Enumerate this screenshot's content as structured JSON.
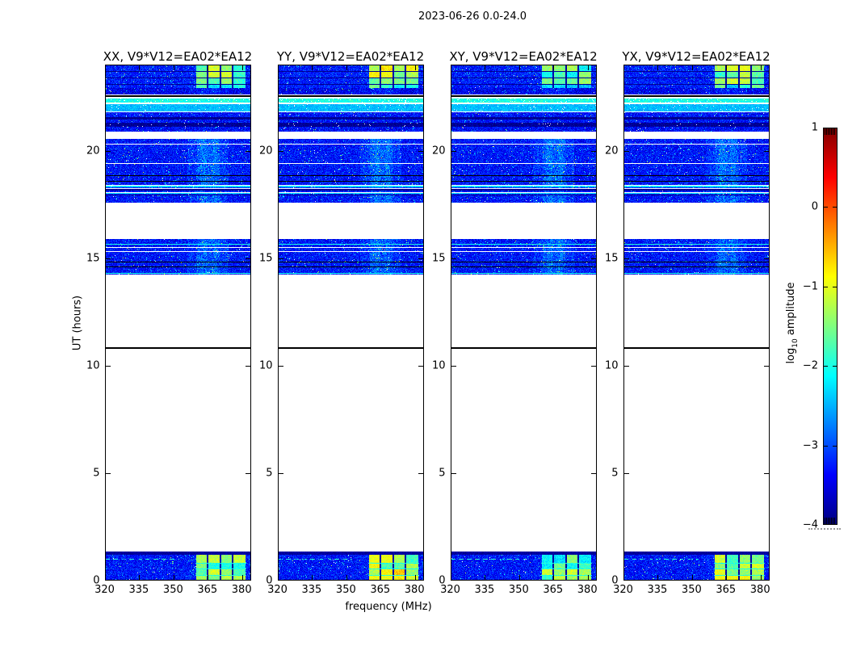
{
  "chart_data": {
    "type": "heatmap",
    "title": "2023-06-26 0.0-24.0",
    "xlabel": "frequency (MHz)",
    "ylabel": "UT (hours)",
    "x_range_mhz": [
      320,
      384
    ],
    "x_ticks": [
      320,
      335,
      350,
      365,
      380
    ],
    "y_range_hours": [
      0,
      24
    ],
    "y_ticks": [
      0,
      5,
      10,
      15,
      20
    ],
    "grid": false,
    "panels": [
      {
        "pol": "XX",
        "label": "XX, V9*V12=EA02*EA12",
        "seed": 101,
        "block_boost": 0.0
      },
      {
        "pol": "YY",
        "label": "YY, V9*V12=EA02*EA12",
        "seed": 202,
        "block_boost": 0.3
      },
      {
        "pol": "XY",
        "label": "XY, V9*V12=EA02*EA12",
        "seed": 303,
        "block_boost": -0.2
      },
      {
        "pol": "YX",
        "label": "YX, V9*V12=EA02*EA12",
        "seed": 404,
        "block_boost": 0.1
      }
    ],
    "colorbar": {
      "colormap": "jet",
      "range": [
        -4,
        1
      ],
      "ticks": [
        1,
        0,
        -1,
        -2,
        -3,
        -4
      ],
      "tick_labels": [
        "1",
        "0",
        "−1",
        "−2",
        "−3",
        "−4"
      ],
      "label_parts": {
        "base": "log",
        "sub": "10",
        "rest": " amplitude"
      }
    },
    "rfi_block_freq_mhz": [
      359.5,
      381.5
    ],
    "rfi_block_col_edges_mhz": [
      359.5,
      365,
      370.5,
      376,
      381.5
    ],
    "bright_band_freq_mhz": [
      356,
      374
    ],
    "noise_floor_log10": -3.3,
    "bands": [
      {
        "type": "blocks",
        "ut": [
          22.9,
          24.0
        ],
        "base": -3.25,
        "rows": [
          23.7,
          23.4,
          23.1
        ],
        "cell_v": [
          -2.0,
          -1.05
        ],
        "rowstyle": "dark",
        "dimlast": true,
        "vband": 0.2
      },
      {
        "type": "noise",
        "ut": [
          22.62,
          22.9
        ],
        "base": -3.45,
        "vband": 0.25
      },
      {
        "type": "hline",
        "ut": 22.59,
        "color": "black",
        "pxh": 2
      },
      {
        "type": "flat",
        "ut": [
          22.22,
          22.42
        ],
        "base": -2.0,
        "jit": 0.3,
        "speck": 0.05
      },
      {
        "type": "hline",
        "ut": 22.2,
        "color": "white",
        "pxh": 2
      },
      {
        "type": "flat",
        "ut": [
          21.84,
          22.17
        ],
        "base": -2.45,
        "jit": 0.2,
        "speck": 0.02
      },
      {
        "type": "hline",
        "ut": 21.8,
        "color": "white",
        "pxh": 2
      },
      {
        "type": "noise",
        "ut": [
          21.56,
          21.78
        ],
        "base": -3.3
      },
      {
        "type": "flat",
        "ut": [
          21.46,
          21.56
        ],
        "base": -3.9,
        "jit": 0.15
      },
      {
        "type": "noise",
        "ut": [
          21.3,
          21.46
        ],
        "base": -3.3
      },
      {
        "type": "flat",
        "ut": [
          21.1,
          21.3
        ],
        "base": -3.9,
        "jit": 0.2,
        "speck": 0.015
      },
      {
        "type": "noise",
        "ut": [
          20.9,
          21.1
        ],
        "base": -3.35
      },
      {
        "type": "noise",
        "ut": [
          17.56,
          20.56
        ],
        "base": -3.3,
        "vband": 0.55,
        "hlines": [
          {
            "ut": 20.33,
            "color": "white"
          },
          {
            "ut": 19.4,
            "color": "white"
          },
          {
            "ut": 18.85,
            "color": "black"
          },
          {
            "ut": 18.6,
            "color": "black"
          }
        ],
        "stripes": [
          17.9,
          18.42
        ]
      },
      {
        "type": "noise",
        "ut": [
          14.25,
          15.9
        ],
        "base": -3.3,
        "vband": 0.5,
        "hlines": [
          {
            "ut": 15.66,
            "color": "cyan"
          },
          {
            "ut": 15.52,
            "color": "white"
          },
          {
            "ut": 15.34,
            "color": "white"
          },
          {
            "ut": 14.82,
            "color": "black"
          },
          {
            "ut": 14.6,
            "color": "black"
          },
          {
            "ut": 14.32,
            "color": "cyan"
          }
        ]
      },
      {
        "type": "hline",
        "ut": 10.87,
        "color": "black",
        "pxh": 2
      },
      {
        "type": "flat",
        "ut": [
          1.21,
          1.36
        ],
        "base": -3.85,
        "jit": 0.12
      },
      {
        "type": "blocks",
        "ut": [
          0.0,
          1.21
        ],
        "base": -3.3,
        "rows": [
          0.82,
          0.55,
          0.28
        ],
        "cell_v": [
          -2.1,
          -1.15
        ],
        "rowstyle": "bright",
        "bright_low": true,
        "vband": 0.2,
        "dash": {
          "ut": 1.02,
          "freq": [
            320.5,
            352
          ],
          "v": -1.9
        }
      }
    ],
    "colors": {
      "noise_blue": "#1b3fd0",
      "bright_cyan": "#40d0e0",
      "block_green": "#50e090",
      "block_yellow": "#b8e040",
      "background": "#ffffff",
      "frame": "#000000"
    }
  }
}
